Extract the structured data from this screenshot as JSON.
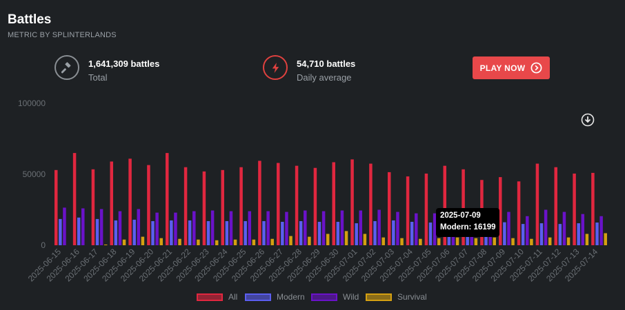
{
  "header": {
    "title": "Battles",
    "subtitle": "METRIC BY SPLINTERLANDS"
  },
  "stats": {
    "total": {
      "value": "1,641,309 battles",
      "label": "Total",
      "icon": "gavel-icon"
    },
    "daily": {
      "value": "54,710 battles",
      "label": "Daily average",
      "icon": "lightning-bolt-icon"
    }
  },
  "play_button": {
    "label": "PLAY NOW",
    "icon": "chevron-right-circle-icon"
  },
  "download_icon": "download-icon",
  "tooltip": {
    "date": "2025-07-09",
    "text": "Modern: 16199"
  },
  "colors": {
    "background": "#1e2124",
    "accent": "#e8484a",
    "all": "#e0273f",
    "modern": "#5b5ef0",
    "wild": "#6a12c9",
    "survival": "#d4a012"
  },
  "chart_data": {
    "type": "bar",
    "ylim": [
      0,
      100000
    ],
    "yticks": [
      "0",
      "50000",
      "100000"
    ],
    "grid": false,
    "legend_position": "bottom",
    "categories": [
      "2025-06-15",
      "2025-06-16",
      "2025-06-17",
      "2025-06-18",
      "2025-06-19",
      "2025-06-20",
      "2025-06-21",
      "2025-06-22",
      "2025-06-23",
      "2025-06-24",
      "2025-06-25",
      "2025-06-26",
      "2025-06-27",
      "2025-06-28",
      "2025-06-29",
      "2025-06-30",
      "2025-07-01",
      "2025-07-02",
      "2025-07-03",
      "2025-07-04",
      "2025-07-05",
      "2025-07-06",
      "2025-07-07",
      "2025-07-08",
      "2025-07-09",
      "2025-07-10",
      "2025-07-11",
      "2025-07-12",
      "2025-07-13",
      "2025-07-14"
    ],
    "series": [
      {
        "name": "All",
        "color": "#e0273f",
        "values": [
          53000,
          65000,
          53500,
          59000,
          61000,
          56500,
          65000,
          55000,
          52000,
          53000,
          55000,
          59500,
          58000,
          56000,
          54500,
          58500,
          60500,
          57500,
          51500,
          48500,
          50500,
          56000,
          53500,
          46000,
          48000,
          45000,
          57500,
          55000,
          50500,
          51000
        ]
      },
      {
        "name": "Modern",
        "color": "#5b5ef0",
        "values": [
          18500,
          19500,
          18500,
          17500,
          18000,
          17000,
          17500,
          17500,
          17000,
          17000,
          17000,
          17000,
          16500,
          17000,
          16500,
          16500,
          15500,
          17000,
          17500,
          16500,
          16000,
          16500,
          16500,
          16000,
          16199,
          15000,
          15500,
          15000,
          15500,
          16000
        ]
      },
      {
        "name": "Wild",
        "color": "#6a12c9",
        "values": [
          26500,
          26000,
          25500,
          24000,
          25500,
          23000,
          23000,
          24000,
          24500,
          24000,
          24000,
          24000,
          23500,
          24500,
          24000,
          24500,
          24500,
          25000,
          23500,
          22500,
          22500,
          24000,
          24000,
          22000,
          23500,
          20500,
          25000,
          23500,
          22000,
          20500
        ]
      },
      {
        "name": "Survival",
        "color": "#d4a012",
        "values": [
          0,
          0,
          500,
          4000,
          6000,
          5000,
          4500,
          4000,
          3500,
          4000,
          4000,
          4500,
          6500,
          6000,
          8000,
          10000,
          8000,
          5500,
          5000,
          4500,
          5000,
          5500,
          5000,
          5500,
          5000,
          4500,
          5500,
          5500,
          8000,
          8500
        ]
      }
    ]
  }
}
